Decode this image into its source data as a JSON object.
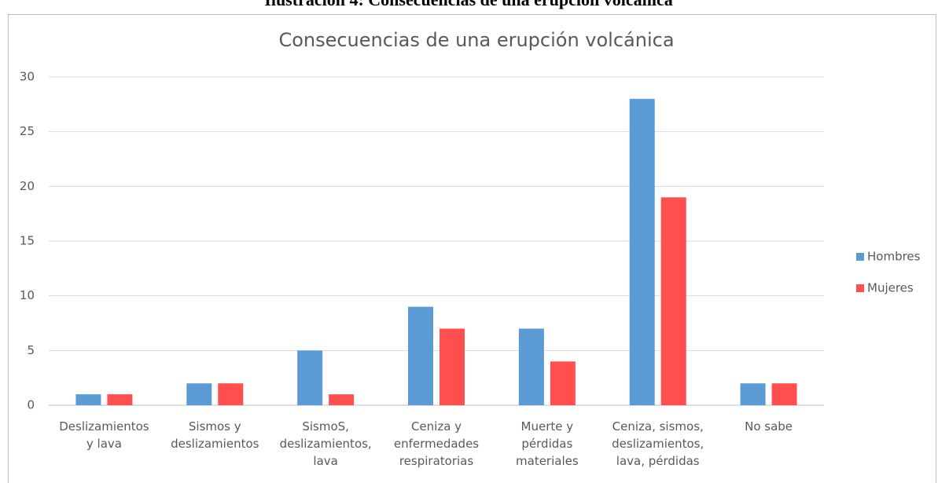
{
  "caption": "Ilustración 4: Consecuencias de una erupción volcánica",
  "chart_data": {
    "type": "bar",
    "title": "Consecuencias de una erupción volcánica",
    "categories": [
      "Deslizamientos\ny lava",
      "Sismos y\ndeslizamientos",
      "SismoS,\ndeslizamientos,\nlava",
      "Ceniza y\nenfermedades\nrespiratorias",
      "Muerte y\npérdidas\nmateriales",
      "Ceniza, sismos,\ndeslizamientos,\nlava, pérdidas",
      "No sabe"
    ],
    "series": [
      {
        "name": "Hombres",
        "color": "#5b9bd5",
        "values": [
          1,
          2,
          5,
          9,
          7,
          28,
          2
        ]
      },
      {
        "name": "Mujeres",
        "color": "#ff4f4f",
        "values": [
          1,
          2,
          1,
          7,
          4,
          19,
          2
        ]
      }
    ],
    "ylim": [
      0,
      30
    ],
    "yticks": [
      0,
      5,
      10,
      15,
      20,
      25,
      30
    ],
    "grid": true,
    "legend": "right"
  }
}
